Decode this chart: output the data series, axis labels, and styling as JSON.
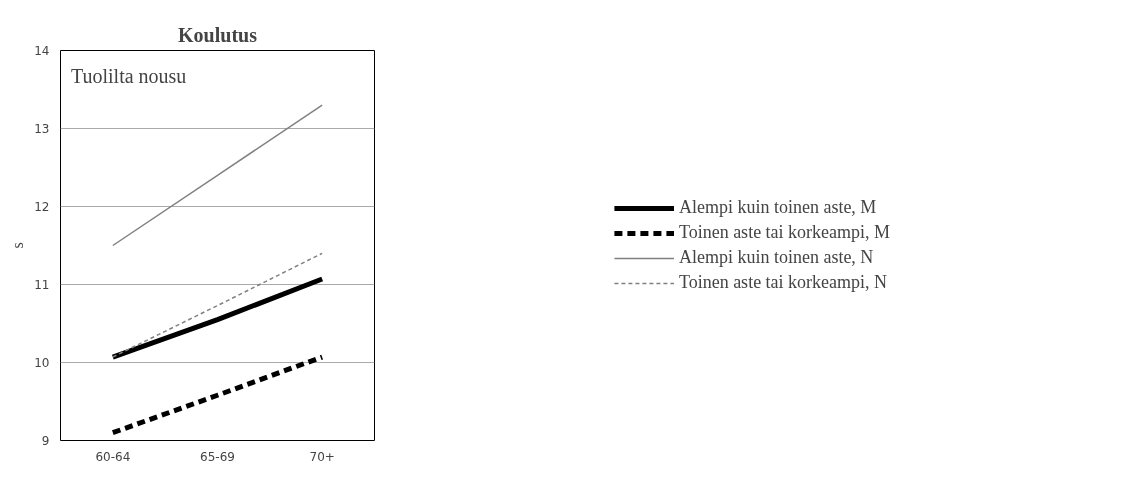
{
  "chart_data": {
    "type": "line",
    "title": "Koulutus",
    "ylabel": "s",
    "annotations": [
      "Tuolilta nousu"
    ],
    "categories": [
      "60-64",
      "65-69",
      "70+"
    ],
    "series": [
      {
        "name": "Alempi kuin toinen aste, M",
        "color": "#000000",
        "line_style": "solid",
        "values": [
          10.07,
          10.55,
          11.07
        ]
      },
      {
        "name": "Toinen aste tai korkeampi, M",
        "color": "#000000",
        "line_style": "dashed",
        "values": [
          9.1,
          9.58,
          10.07
        ]
      },
      {
        "name": "Alempi kuin toinen aste, N",
        "color": "#808080",
        "line_style": "solid",
        "values": [
          11.5,
          12.4,
          13.3
        ]
      },
      {
        "name": "Toinen aste tai korkeampi, N",
        "color": "#808080",
        "line_style": "dashed",
        "values": [
          10.07,
          10.73,
          11.4
        ]
      }
    ],
    "ylim": [
      9,
      14
    ],
    "yticks": [
      9,
      10,
      11,
      12,
      13,
      14
    ],
    "grid": "y",
    "legend": "right",
    "marker": "none"
  }
}
